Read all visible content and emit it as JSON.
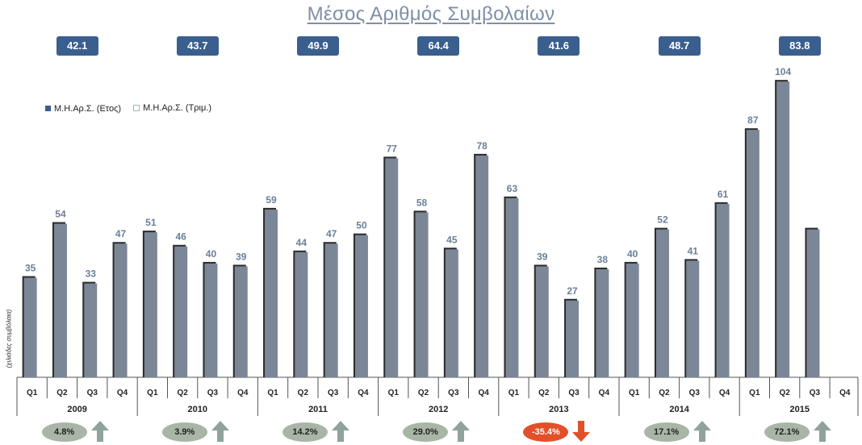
{
  "colors": {
    "bar": "#7b8797",
    "bar_shadow": "#2b2b2b",
    "year_avg_box": "#3a5f8e",
    "value_label": "#6b7f99",
    "axis": "#555555",
    "positive_pill": "#a9b5a6",
    "negative_pill": "#e2502a",
    "up_arrow": "#8fa39a",
    "down_arrow": "#e2502a",
    "legend_year": "#3a5f8e",
    "legend_quarter_outline": "#9fb4cc"
  },
  "chart_data": {
    "type": "bar",
    "title": "Μέσος Αριθμός Συμβολαίων",
    "ylabel": "(χιλιάδες συμβόλαια)",
    "xlabel": "",
    "legend": {
      "placement": "top-left",
      "entries": [
        "Μ.Η.Αρ.Σ.  (Ετος)",
        "Μ.Η.Αρ.Σ.  (Τριμ.)"
      ]
    },
    "ylim": [
      0,
      110
    ],
    "grid": false,
    "quarters": [
      "Q1",
      "Q2",
      "Q3",
      "Q4"
    ],
    "years": [
      {
        "year": "2009",
        "values": [
          35,
          54,
          33,
          47
        ],
        "average": "42.1",
        "change": "4.8%",
        "direction": "up"
      },
      {
        "year": "2010",
        "values": [
          51,
          46,
          40,
          39
        ],
        "average": "43.7",
        "change": "3.9%",
        "direction": "up"
      },
      {
        "year": "2011",
        "values": [
          59,
          44,
          47,
          50
        ],
        "average": "49.9",
        "change": "14.2%",
        "direction": "up"
      },
      {
        "year": "2012",
        "values": [
          77,
          58,
          45,
          78
        ],
        "average": "64.4",
        "change": "29.0%",
        "direction": "up"
      },
      {
        "year": "2013",
        "values": [
          63,
          39,
          27,
          38
        ],
        "average": "41.6",
        "change": "-35.4%",
        "direction": "down"
      },
      {
        "year": "2014",
        "values": [
          40,
          52,
          41,
          61
        ],
        "average": "48.7",
        "change": "17.1%",
        "direction": "up"
      },
      {
        "year": "2015",
        "values": [
          87,
          104,
          52,
          null
        ],
        "labels": [
          "87",
          "104",
          "",
          ""
        ],
        "average": "83.8",
        "change": "72.1%",
        "direction": "up"
      }
    ]
  }
}
